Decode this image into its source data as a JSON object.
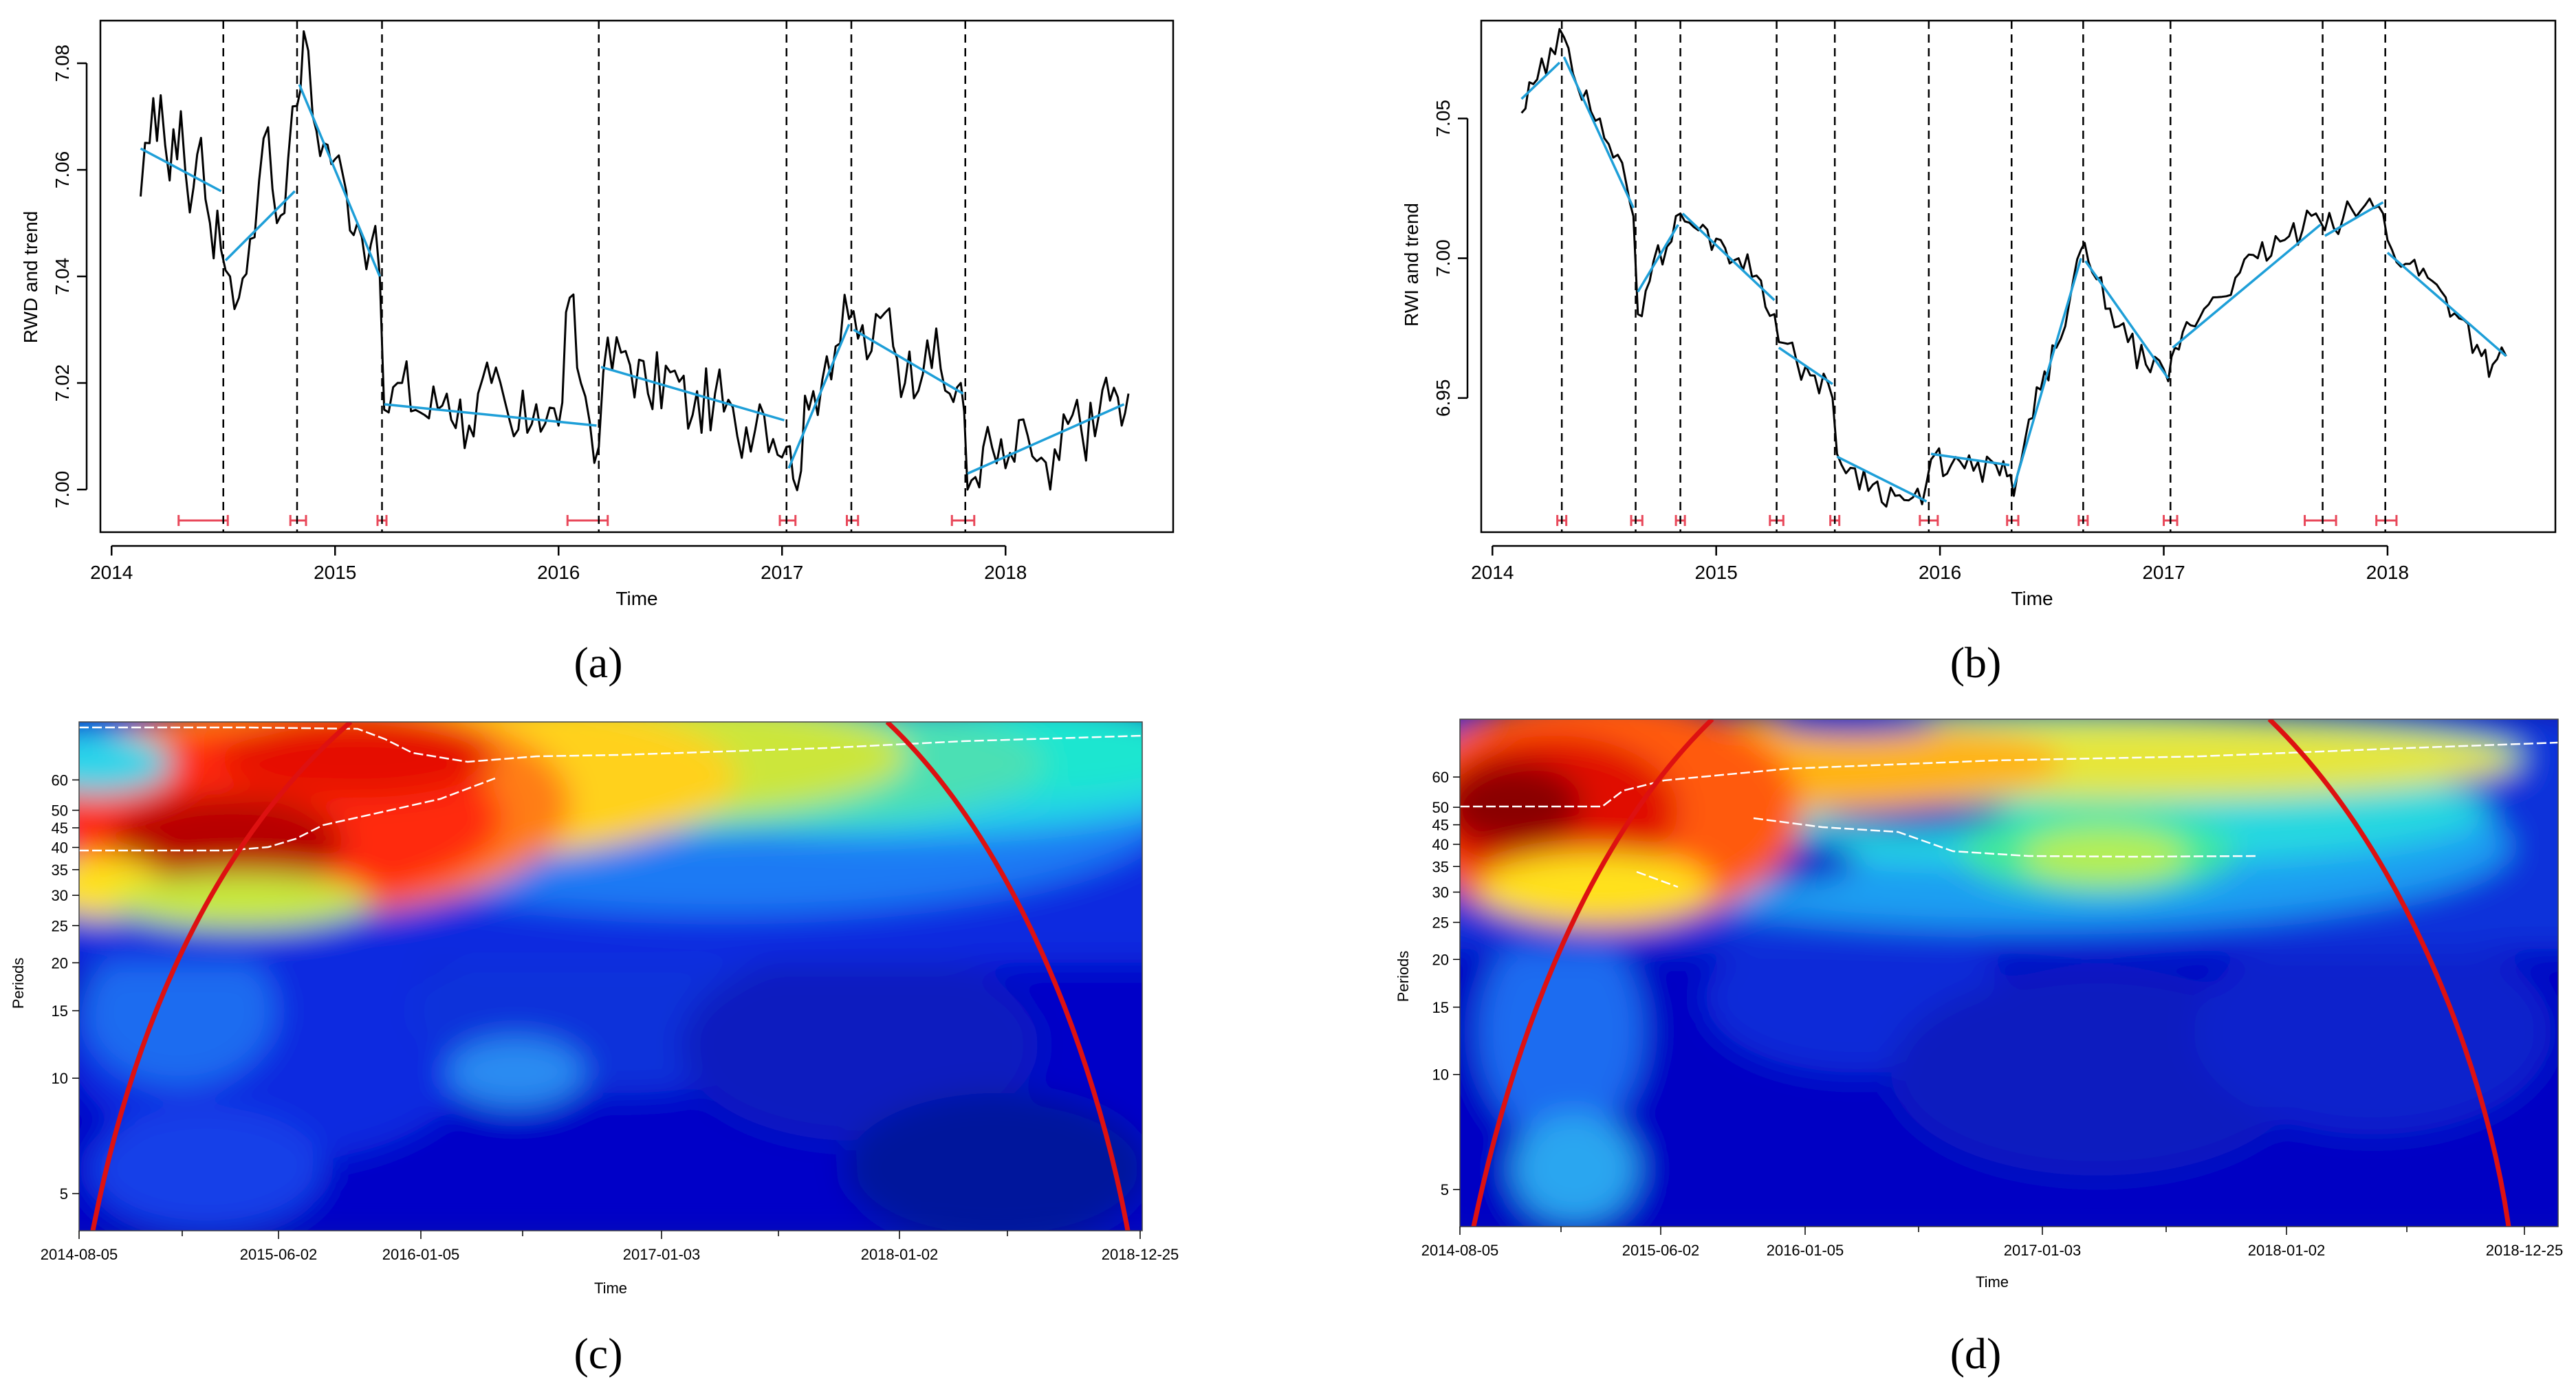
{
  "chart_data": [
    {
      "id": "a",
      "type": "line",
      "panel_label": "(a)",
      "xlabel": "Time",
      "ylabel": "RWD and trend",
      "xlim": [
        2013.95,
        2018.75
      ],
      "ylim": [
        6.992,
        7.088
      ],
      "x_ticks": [
        2014,
        2015,
        2016,
        2017,
        2018
      ],
      "x_tick_labels": [
        "2014",
        "2015",
        "2016",
        "2017",
        "2018"
      ],
      "y_ticks": [
        7.0,
        7.02,
        7.04,
        7.06,
        7.08
      ],
      "y_tick_labels": [
        "7.00",
        "7.02",
        "7.04",
        "7.06",
        "7.08"
      ],
      "series": [
        {
          "name": "RWD",
          "color": "#000000",
          "anchors": [
            [
              2014.13,
              7.055
            ],
            [
              2014.17,
              7.065
            ],
            [
              2014.22,
              7.074
            ],
            [
              2014.26,
              7.058
            ],
            [
              2014.31,
              7.071
            ],
            [
              2014.35,
              7.052
            ],
            [
              2014.4,
              7.066
            ],
            [
              2014.44,
              7.05
            ],
            [
              2014.49,
              7.045
            ],
            [
              2014.53,
              7.04
            ],
            [
              2014.57,
              7.036
            ],
            [
              2014.62,
              7.047
            ],
            [
              2014.66,
              7.058
            ],
            [
              2014.7,
              7.068
            ],
            [
              2014.74,
              7.05
            ],
            [
              2014.79,
              7.062
            ],
            [
              2014.83,
              7.072
            ],
            [
              2014.86,
              7.086
            ],
            [
              2014.9,
              7.07
            ],
            [
              2014.95,
              7.065
            ],
            [
              2015.0,
              7.062
            ],
            [
              2015.05,
              7.056
            ],
            [
              2015.1,
              7.05
            ],
            [
              2015.16,
              7.046
            ],
            [
              2015.2,
              7.04
            ],
            [
              2015.22,
              7.015
            ],
            [
              2015.3,
              7.02
            ],
            [
              2015.4,
              7.014
            ],
            [
              2015.5,
              7.018
            ],
            [
              2015.6,
              7.012
            ],
            [
              2015.7,
              7.02
            ],
            [
              2015.8,
              7.01
            ],
            [
              2015.9,
              7.016
            ],
            [
              2016.0,
              7.012
            ],
            [
              2016.05,
              7.036
            ],
            [
              2016.1,
              7.02
            ],
            [
              2016.18,
              7.008
            ],
            [
              2016.2,
              7.022
            ],
            [
              2016.3,
              7.026
            ],
            [
              2016.4,
              7.018
            ],
            [
              2016.5,
              7.022
            ],
            [
              2016.6,
              7.014
            ],
            [
              2016.7,
              7.018
            ],
            [
              2016.8,
              7.01
            ],
            [
              2016.9,
              7.016
            ],
            [
              2017.02,
              7.008
            ],
            [
              2017.05,
              7.002
            ],
            [
              2017.12,
              7.015
            ],
            [
              2017.2,
              7.025
            ],
            [
              2017.3,
              7.032
            ],
            [
              2017.4,
              7.026
            ],
            [
              2017.48,
              7.034
            ],
            [
              2017.55,
              7.02
            ],
            [
              2017.65,
              7.028
            ],
            [
              2017.75,
              7.018
            ],
            [
              2017.8,
              7.02
            ],
            [
              2017.83,
              7.0
            ],
            [
              2017.9,
              7.008
            ],
            [
              2018.0,
              7.004
            ],
            [
              2018.1,
              7.01
            ],
            [
              2018.2,
              7.0
            ],
            [
              2018.3,
              7.014
            ],
            [
              2018.4,
              7.01
            ],
            [
              2018.45,
              7.021
            ],
            [
              2018.52,
              7.012
            ],
            [
              2018.55,
              7.018
            ]
          ]
        },
        {
          "name": "trend",
          "color": "#1E9FD8",
          "segments": [
            [
              [
                2014.13,
                7.064
              ],
              [
                2014.49,
                7.056
              ]
            ],
            [
              [
                2014.51,
                7.043
              ],
              [
                2014.82,
                7.056
              ]
            ],
            [
              [
                2014.84,
                7.076
              ],
              [
                2015.2,
                7.04
              ]
            ],
            [
              [
                2015.22,
                7.016
              ],
              [
                2016.17,
                7.012
              ]
            ],
            [
              [
                2016.19,
                7.023
              ],
              [
                2017.01,
                7.013
              ]
            ],
            [
              [
                2017.03,
                7.004
              ],
              [
                2017.3,
                7.031
              ]
            ],
            [
              [
                2017.32,
                7.03
              ],
              [
                2017.81,
                7.018
              ]
            ],
            [
              [
                2017.83,
                7.003
              ],
              [
                2018.53,
                7.016
              ]
            ]
          ]
        }
      ],
      "breakpoints": [
        2014.5,
        2014.83,
        2015.21,
        2016.18,
        2017.02,
        2017.31,
        2017.82
      ],
      "confidence_intervals": [
        [
          2014.3,
          2014.52
        ],
        [
          2014.8,
          2014.87
        ],
        [
          2015.19,
          2015.23
        ],
        [
          2016.04,
          2016.22
        ],
        [
          2016.99,
          2017.06
        ],
        [
          2017.29,
          2017.34
        ],
        [
          2017.76,
          2017.86
        ]
      ]
    },
    {
      "id": "b",
      "type": "line",
      "panel_label": "(b)",
      "xlabel": "Time",
      "ylabel": "RWI and trend",
      "xlim": [
        2013.95,
        2018.75
      ],
      "ylim": [
        6.902,
        7.085
      ],
      "x_ticks": [
        2014,
        2015,
        2016,
        2017,
        2018
      ],
      "x_tick_labels": [
        "2014",
        "2015",
        "2016",
        "2017",
        "2018"
      ],
      "y_ticks": [
        6.95,
        7.0,
        7.05
      ],
      "y_tick_labels": [
        "6.95",
        "7.00",
        "7.05"
      ],
      "series": [
        {
          "name": "RWI",
          "color": "#000000",
          "anchors": [
            [
              2014.13,
              7.052
            ],
            [
              2014.2,
              7.064
            ],
            [
              2014.28,
              7.073
            ],
            [
              2014.3,
              7.082
            ],
            [
              2014.36,
              7.066
            ],
            [
              2014.42,
              7.06
            ],
            [
              2014.48,
              7.05
            ],
            [
              2014.54,
              7.036
            ],
            [
              2014.6,
              7.026
            ],
            [
              2014.63,
              7.015
            ],
            [
              2014.65,
              6.98
            ],
            [
              2014.72,
              6.999
            ],
            [
              2014.8,
              7.006
            ],
            [
              2014.84,
              7.016
            ],
            [
              2014.92,
              7.01
            ],
            [
              2015.0,
              7.007
            ],
            [
              2015.1,
              7.0
            ],
            [
              2015.2,
              6.992
            ],
            [
              2015.26,
              6.98
            ],
            [
              2015.28,
              6.97
            ],
            [
              2015.36,
              6.963
            ],
            [
              2015.44,
              6.958
            ],
            [
              2015.52,
              6.95
            ],
            [
              2015.54,
              6.93
            ],
            [
              2015.6,
              6.925
            ],
            [
              2015.7,
              6.919
            ],
            [
              2015.8,
              6.915
            ],
            [
              2015.92,
              6.912
            ],
            [
              2015.96,
              6.928
            ],
            [
              2016.05,
              6.926
            ],
            [
              2016.15,
              6.924
            ],
            [
              2016.25,
              6.926
            ],
            [
              2016.3,
              6.922
            ],
            [
              2016.33,
              6.915
            ],
            [
              2016.38,
              6.935
            ],
            [
              2016.45,
              6.953
            ],
            [
              2016.52,
              6.968
            ],
            [
              2016.58,
              6.985
            ],
            [
              2016.63,
              7.003
            ],
            [
              2016.68,
              6.995
            ],
            [
              2016.76,
              6.982
            ],
            [
              2016.84,
              6.97
            ],
            [
              2016.92,
              6.962
            ],
            [
              2017.02,
              6.956
            ],
            [
              2017.05,
              6.968
            ],
            [
              2017.12,
              6.976
            ],
            [
              2017.22,
              6.986
            ],
            [
              2017.32,
              6.993
            ],
            [
              2017.42,
              7.0
            ],
            [
              2017.52,
              7.006
            ],
            [
              2017.62,
              7.01
            ],
            [
              2017.68,
              7.016
            ],
            [
              2017.72,
              7.01
            ],
            [
              2017.8,
              7.014
            ],
            [
              2017.9,
              7.019
            ],
            [
              2017.98,
              7.016
            ],
            [
              2018.02,
              7.003
            ],
            [
              2018.1,
              6.998
            ],
            [
              2018.18,
              6.993
            ],
            [
              2018.26,
              6.986
            ],
            [
              2018.34,
              6.978
            ],
            [
              2018.42,
              6.965
            ],
            [
              2018.47,
              6.962
            ],
            [
              2018.53,
              6.965
            ]
          ]
        },
        {
          "name": "trend",
          "color": "#1E9FD8",
          "segments": [
            [
              [
                2014.13,
                7.057
              ],
              [
                2014.3,
                7.07
              ]
            ],
            [
              [
                2014.32,
                7.072
              ],
              [
                2014.63,
                7.018
              ]
            ],
            [
              [
                2014.65,
                6.988
              ],
              [
                2014.83,
                7.012
              ]
            ],
            [
              [
                2014.85,
                7.016
              ],
              [
                2015.26,
                6.985
              ]
            ],
            [
              [
                2015.28,
                6.968
              ],
              [
                2015.52,
                6.955
              ]
            ],
            [
              [
                2015.54,
                6.929
              ],
              [
                2015.94,
                6.913
              ]
            ],
            [
              [
                2015.96,
                6.93
              ],
              [
                2016.31,
                6.926
              ]
            ],
            [
              [
                2016.33,
                6.918
              ],
              [
                2016.63,
                7.0
              ]
            ],
            [
              [
                2016.65,
                6.999
              ],
              [
                2017.02,
                6.957
              ]
            ],
            [
              [
                2017.04,
                6.968
              ],
              [
                2017.7,
                7.012
              ]
            ],
            [
              [
                2017.72,
                7.008
              ],
              [
                2017.98,
                7.02
              ]
            ],
            [
              [
                2018.0,
                7.002
              ],
              [
                2018.53,
                6.965
              ]
            ]
          ]
        }
      ],
      "breakpoints": [
        2014.31,
        2014.64,
        2014.84,
        2015.27,
        2015.53,
        2015.95,
        2016.32,
        2016.64,
        2017.03,
        2017.71,
        2017.99
      ],
      "confidence_intervals": [
        [
          2014.29,
          2014.33
        ],
        [
          2014.62,
          2014.67
        ],
        [
          2014.82,
          2014.86
        ],
        [
          2015.24,
          2015.3
        ],
        [
          2015.51,
          2015.55
        ],
        [
          2015.91,
          2015.99
        ],
        [
          2016.3,
          2016.35
        ],
        [
          2016.62,
          2016.66
        ],
        [
          2017.0,
          2017.06
        ],
        [
          2017.63,
          2017.77
        ],
        [
          2017.95,
          2018.04
        ]
      ]
    },
    {
      "id": "c",
      "type": "heatmap",
      "panel_label": "(c)",
      "xlabel": "Time",
      "ylabel": "Periods",
      "x_tick_labels": [
        "2014-08-05",
        "2015-06-02",
        "2016-01-05",
        "2017-01-03",
        "2018-01-02",
        "2018-12-25"
      ],
      "y_ticks": [
        5,
        10,
        15,
        20,
        25,
        30,
        35,
        40,
        45,
        50,
        60
      ],
      "y_tick_labels": [
        "5",
        "10",
        "15",
        "20",
        "25",
        "30",
        "35",
        "40",
        "45",
        "50",
        "60"
      ],
      "ylim_log_periods": [
        4,
        85
      ],
      "colormap": "jet",
      "cone_of_influence": true,
      "ridge_lines": true
    },
    {
      "id": "d",
      "type": "heatmap",
      "panel_label": "(d)",
      "xlabel": "Time",
      "ylabel": "Periods",
      "x_tick_labels": [
        "2014-08-05",
        "2015-06-02",
        "2016-01-05",
        "2017-01-03",
        "2018-01-02",
        "2018-12-25"
      ],
      "y_ticks": [
        5,
        10,
        15,
        20,
        25,
        30,
        35,
        40,
        45,
        50,
        60
      ],
      "y_tick_labels": [
        "5",
        "10",
        "15",
        "20",
        "25",
        "30",
        "35",
        "40",
        "45",
        "50",
        "60"
      ],
      "ylim_log_periods": [
        4,
        85
      ],
      "colormap": "jet",
      "cone_of_influence": true,
      "ridge_lines": true
    }
  ],
  "colors": {
    "series": "#000000",
    "trend": "#1E9FD8",
    "breakpoint": "#000000",
    "confidence_interval": "#E8485A",
    "cone": "#E01818",
    "ridge": "#FFFFFF"
  }
}
